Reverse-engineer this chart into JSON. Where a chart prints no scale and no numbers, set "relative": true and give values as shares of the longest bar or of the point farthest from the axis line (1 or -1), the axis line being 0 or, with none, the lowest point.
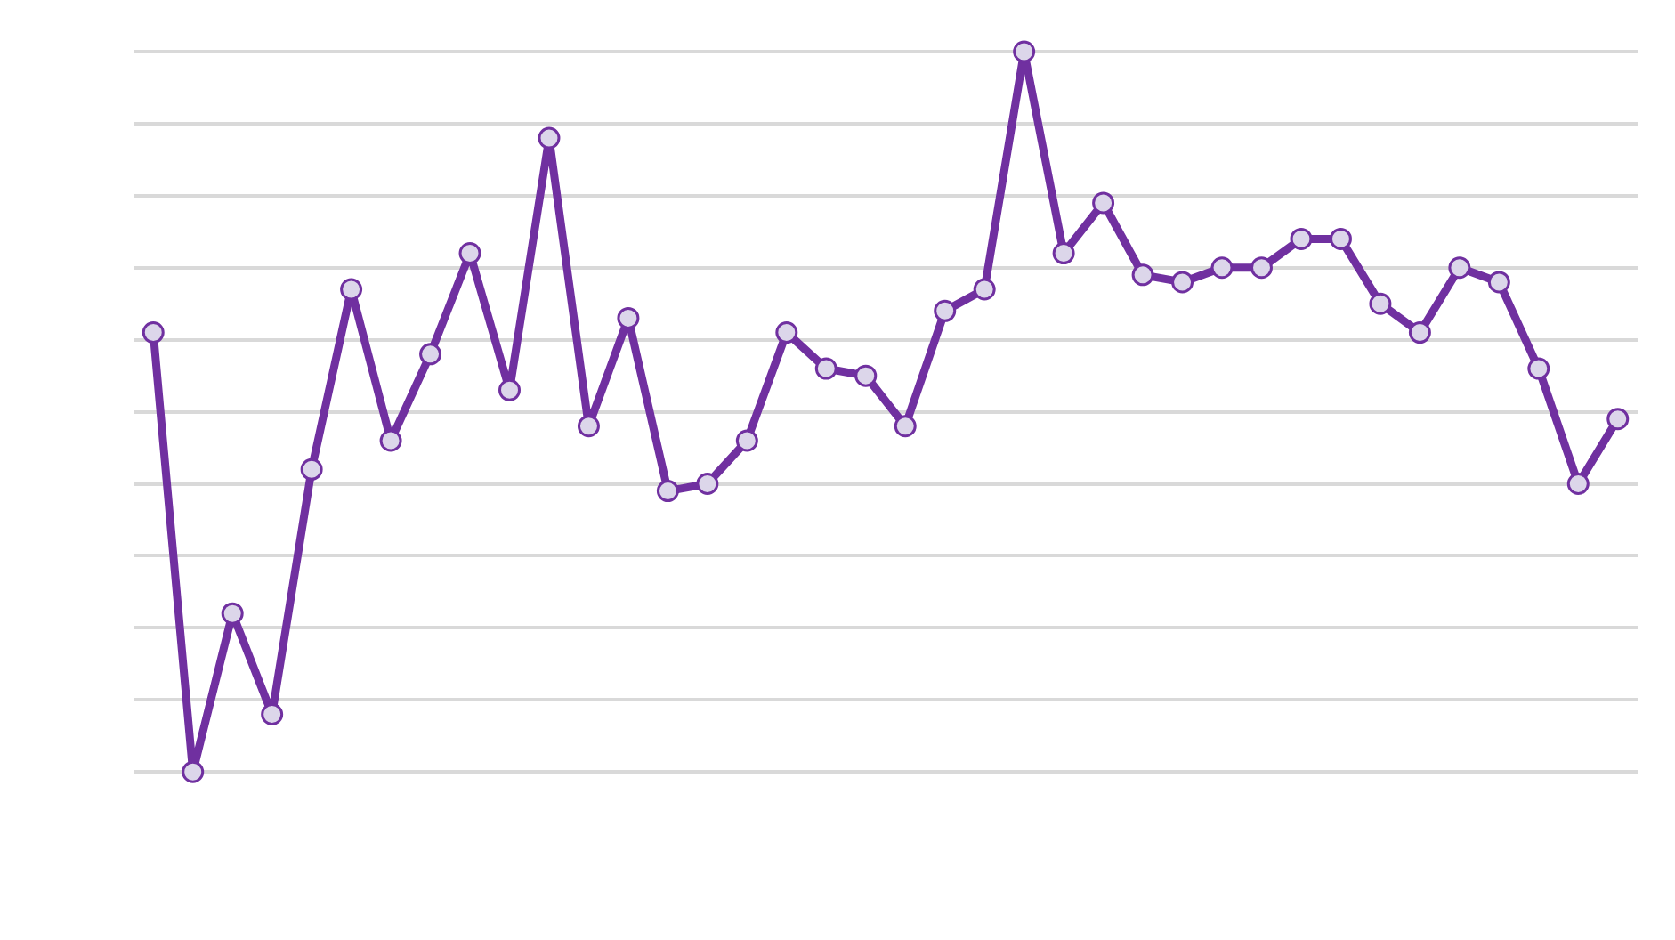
{
  "chart_data": {
    "type": "line",
    "relative": true,
    "grid": "y",
    "marker": "circle",
    "line_style": "solid",
    "legend": false,
    "categories": [
      null,
      null,
      null,
      null,
      null,
      null,
      null,
      null,
      null,
      null,
      null,
      null,
      null,
      null,
      null,
      null,
      null,
      null,
      null,
      null,
      null,
      null,
      null,
      null,
      null,
      null,
      null,
      null,
      null,
      null,
      null,
      null,
      null,
      null,
      null,
      null,
      null,
      null
    ],
    "series": [
      {
        "color": "#7030a0",
        "values": [
          0.61,
          0,
          0.22,
          0.08,
          0.42,
          0.67,
          0.46,
          0.58,
          0.72,
          0.53,
          0.88,
          0.48,
          0.63,
          0.39,
          0.4,
          0.46,
          0.61,
          0.56,
          0.55,
          0.48,
          0.64,
          0.67,
          1,
          0.72,
          0.79,
          0.69,
          0.68,
          0.7,
          0.7,
          0.74,
          0.74,
          0.65,
          0.61,
          0.7,
          0.68,
          0.56,
          0.4,
          0.49
        ]
      }
    ]
  }
}
